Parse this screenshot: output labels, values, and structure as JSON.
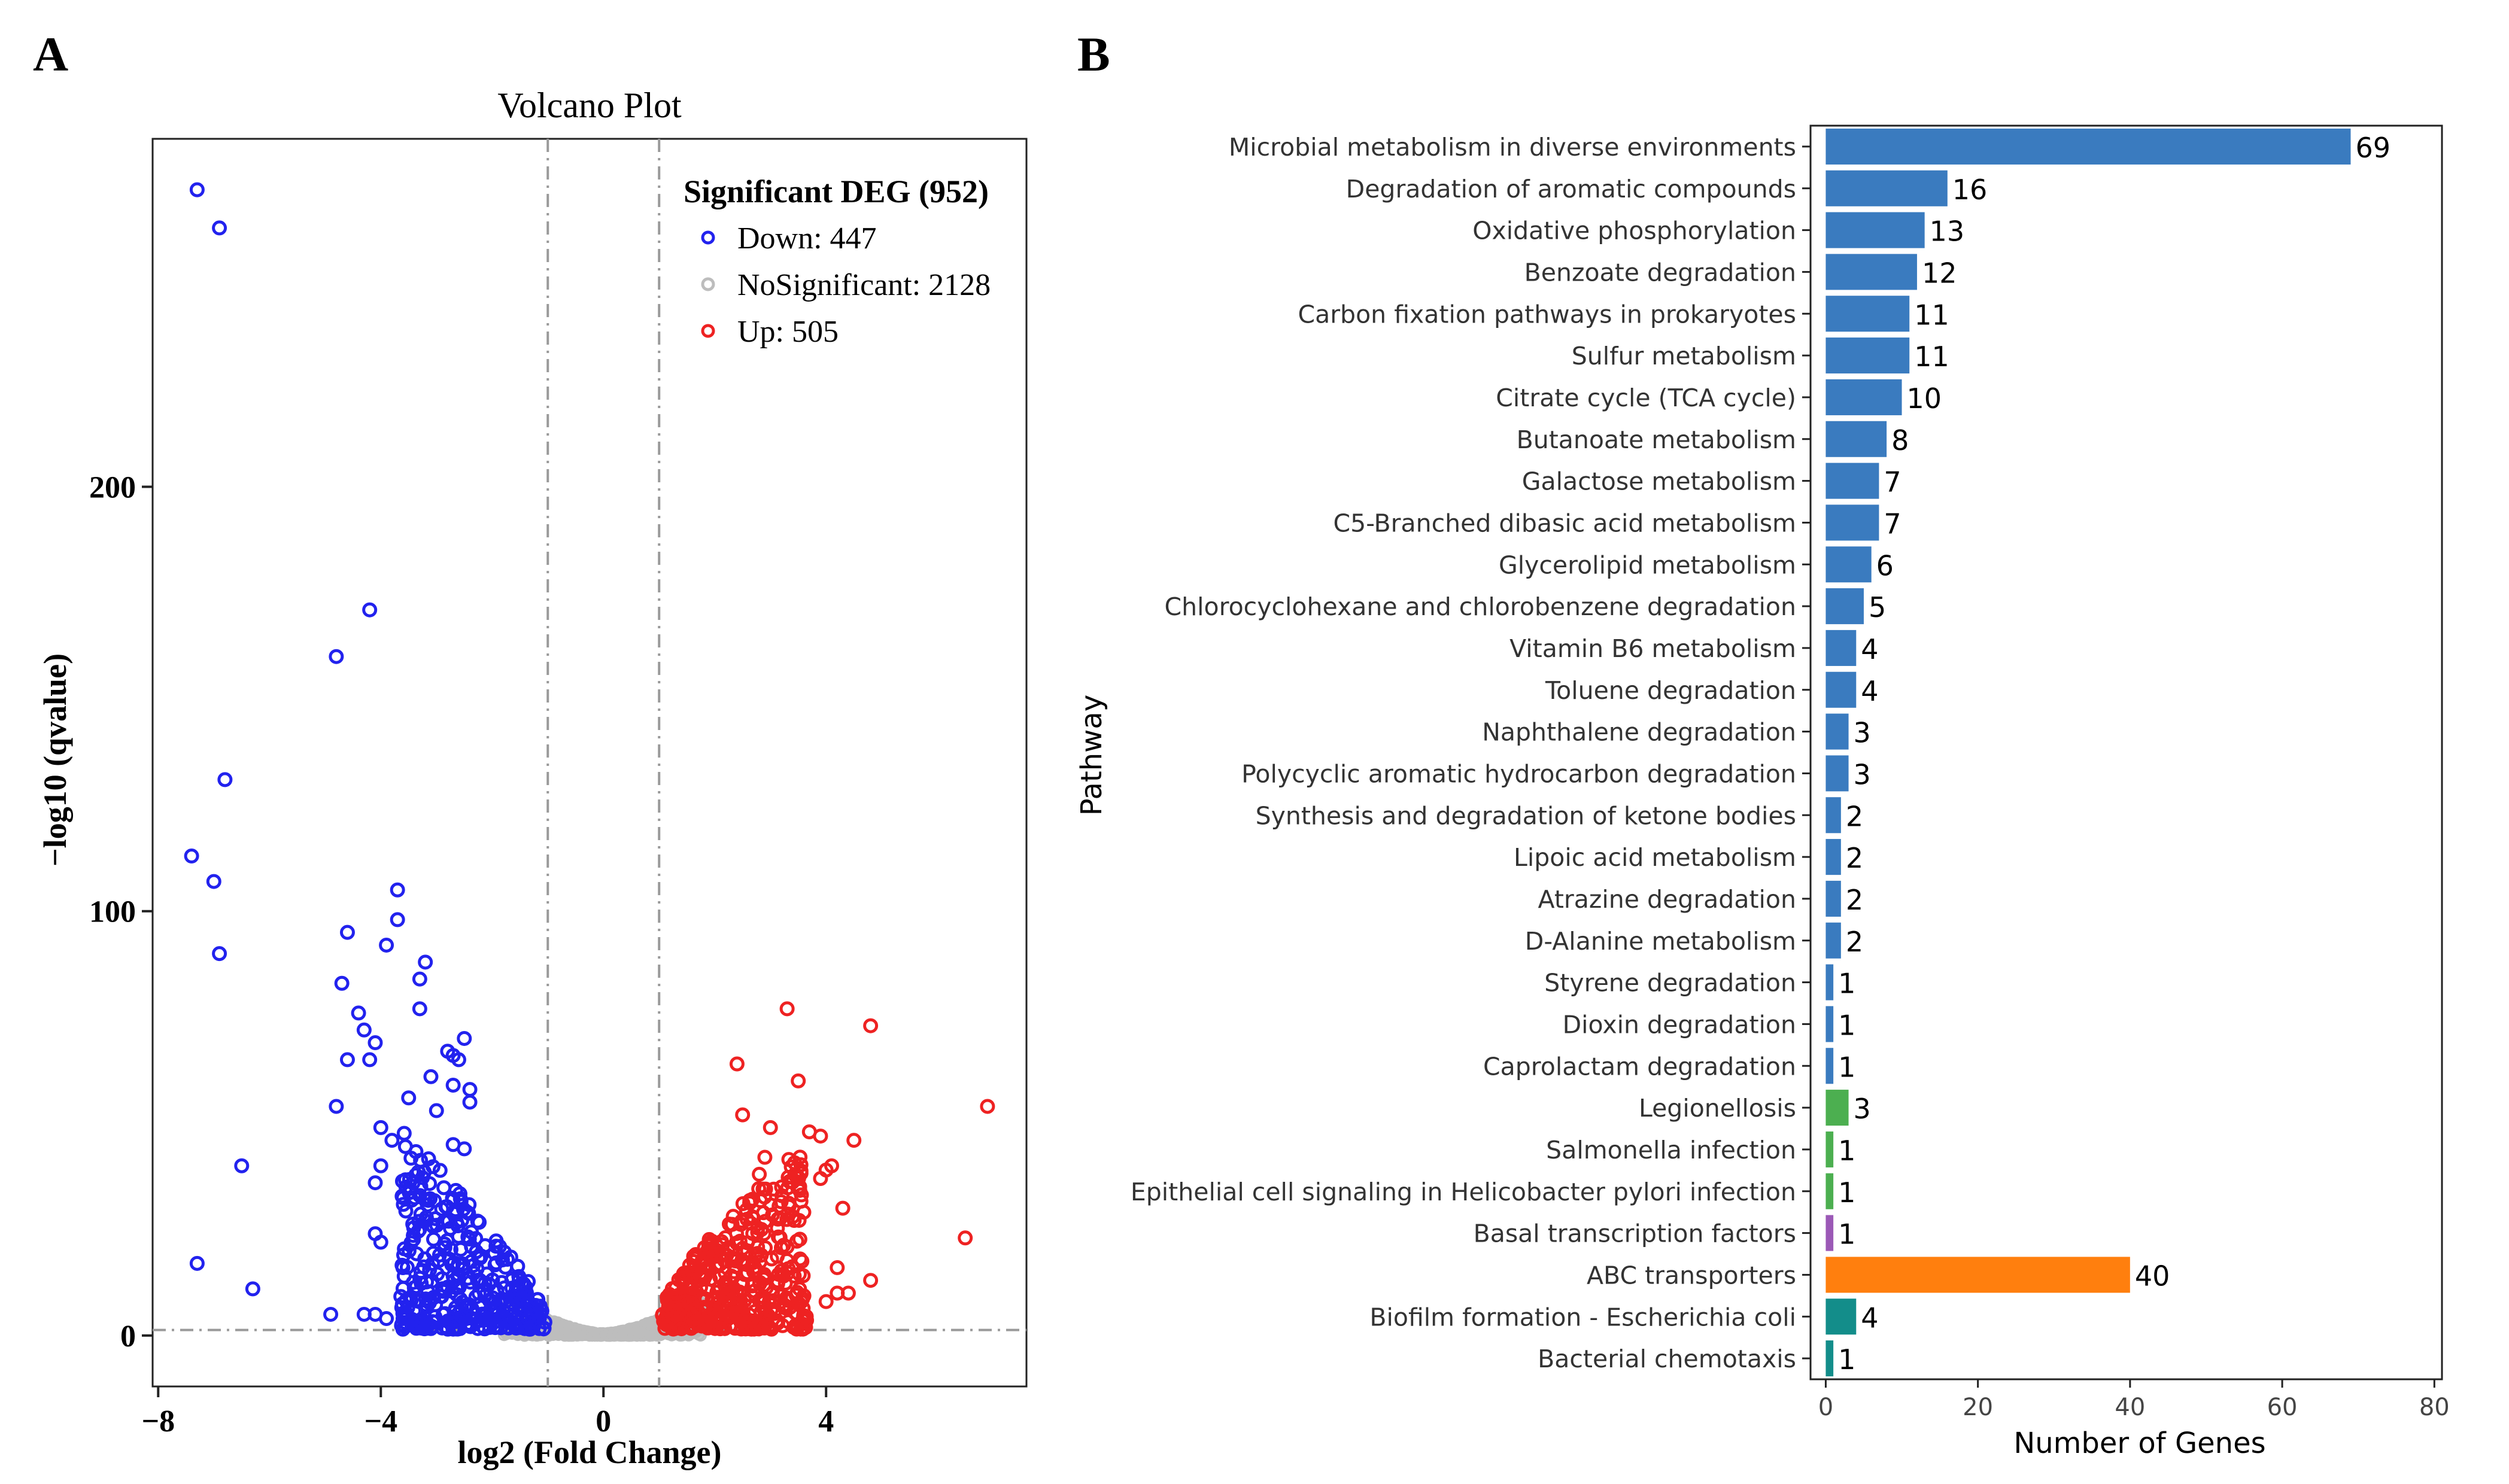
{
  "panels": {
    "a_label": "A",
    "b_label": "B"
  },
  "colors": {
    "down": "#2222ee",
    "nosig": "#bdbdbd",
    "up": "#ee2222",
    "bar_blue": "#3a7bbf",
    "bar_green": "#4caf50",
    "bar_purple": "#9b59b6",
    "bar_orange": "#ff7f0e",
    "bar_teal": "#138d8a"
  },
  "chart_data": [
    {
      "type": "scatter",
      "title": "Volcano Plot",
      "xlabel": "log2 (Fold Change)",
      "ylabel": "−log10 (qvalue)",
      "xlim": [
        -8.1,
        7.6
      ],
      "ylim": [
        -12,
        282
      ],
      "x_ticks": [
        -8,
        -4,
        0,
        4
      ],
      "x_tick_labels": [
        "−8",
        "−4",
        "0",
        "4"
      ],
      "y_ticks": [
        0,
        100,
        200
      ],
      "y_tick_labels": [
        "0",
        "100",
        "200"
      ],
      "thresholds": {
        "x": [
          -1,
          1
        ],
        "y": 1.3
      },
      "legend": {
        "title": "Significant DEG (952)",
        "position": "top-right",
        "entries": [
          {
            "label": "Down: 447",
            "color": "#2222ee"
          },
          {
            "label": "NoSignificant: 2128",
            "color": "#bdbdbd"
          },
          {
            "label": "Up: 505",
            "color": "#ee2222"
          }
        ]
      },
      "series": [
        {
          "name": "Down",
          "color": "#2222ee",
          "points": [
            [
              -7.3,
              270
            ],
            [
              -6.9,
              261
            ],
            [
              -6.8,
              131
            ],
            [
              -7.4,
              113
            ],
            [
              -7.0,
              107
            ],
            [
              -6.9,
              90
            ],
            [
              -6.5,
              40
            ],
            [
              -7.3,
              17
            ],
            [
              -6.3,
              11
            ],
            [
              -4.2,
              171
            ],
            [
              -4.8,
              160
            ],
            [
              -3.7,
              105
            ],
            [
              -3.7,
              98
            ],
            [
              -4.6,
              95
            ],
            [
              -3.9,
              92
            ],
            [
              -3.2,
              88
            ],
            [
              -3.3,
              84
            ],
            [
              -4.7,
              83
            ],
            [
              -4.4,
              76
            ],
            [
              -3.3,
              77
            ],
            [
              -4.3,
              72
            ],
            [
              -4.1,
              69
            ],
            [
              -4.2,
              65
            ],
            [
              -4.6,
              65
            ],
            [
              -2.5,
              70
            ],
            [
              -2.8,
              67
            ],
            [
              -2.7,
              66
            ],
            [
              -2.6,
              65
            ],
            [
              -4.8,
              54
            ],
            [
              -3.1,
              61
            ],
            [
              -2.7,
              59
            ],
            [
              -2.4,
              58
            ],
            [
              -3.5,
              56
            ],
            [
              -3.0,
              53
            ],
            [
              -2.4,
              55
            ],
            [
              -4.0,
              49
            ],
            [
              -3.8,
              46
            ],
            [
              -2.7,
              45
            ],
            [
              -2.5,
              44
            ],
            [
              -4.0,
              40
            ],
            [
              -4.1,
              36
            ],
            [
              -3.3,
              33
            ],
            [
              -4.1,
              24
            ],
            [
              -4.0,
              22
            ],
            [
              -4.3,
              5
            ],
            [
              -4.1,
              5
            ],
            [
              -4.9,
              5
            ],
            [
              -3.9,
              4
            ],
            [
              -3.6,
              4
            ]
          ],
          "cluster": {
            "x_range": [
              -3.6,
              -1.0
            ],
            "y_max": 48,
            "count": 398
          }
        },
        {
          "name": "NoSignificant",
          "color": "#bdbdbd",
          "cluster": {
            "x_range": [
              -1.8,
              1.8
            ],
            "y_max": 12,
            "count": 2128
          }
        },
        {
          "name": "Up",
          "color": "#ee2222",
          "points": [
            [
              3.3,
              77
            ],
            [
              4.8,
              73
            ],
            [
              6.9,
              54
            ],
            [
              3.5,
              60
            ],
            [
              2.4,
              64
            ],
            [
              2.5,
              52
            ],
            [
              3.0,
              49
            ],
            [
              3.7,
              48
            ],
            [
              3.9,
              47
            ],
            [
              4.5,
              46
            ],
            [
              6.5,
              23
            ],
            [
              4.0,
              39
            ],
            [
              4.1,
              40
            ],
            [
              3.9,
              37
            ],
            [
              4.3,
              30
            ],
            [
              4.2,
              16
            ],
            [
              4.8,
              13
            ],
            [
              4.4,
              10
            ],
            [
              4.2,
              10
            ],
            [
              4.0,
              8
            ],
            [
              2.9,
              42
            ],
            [
              2.8,
              38
            ],
            [
              3.2,
              35
            ],
            [
              3.4,
              28
            ]
          ],
          "cluster": {
            "x_range": [
              1.0,
              3.6
            ],
            "y_max": 45,
            "count": 481
          }
        }
      ]
    },
    {
      "type": "bar",
      "orientation": "horizontal",
      "xlabel": "Number of Genes",
      "ylabel": "Pathway",
      "xlim": [
        -2,
        81
      ],
      "x_ticks": [
        0,
        20,
        40,
        60,
        80
      ],
      "x_tick_labels": [
        "0",
        "20",
        "40",
        "60",
        "80"
      ],
      "categories": [
        "Microbial metabolism in diverse environments",
        "Degradation of aromatic compounds",
        "Oxidative phosphorylation",
        "Benzoate degradation",
        "Carbon fixation pathways in prokaryotes",
        "Sulfur metabolism",
        "Citrate cycle (TCA cycle)",
        "Butanoate metabolism",
        "Galactose metabolism",
        "C5-Branched dibasic acid metabolism",
        "Glycerolipid metabolism",
        "Chlorocyclohexane and chlorobenzene degradation",
        "Vitamin B6 metabolism",
        "Toluene degradation",
        "Naphthalene degradation",
        "Polycyclic aromatic hydrocarbon degradation",
        "Synthesis and degradation of ketone bodies",
        "Lipoic acid metabolism",
        "Atrazine degradation",
        "D-Alanine metabolism",
        "Styrene degradation",
        "Dioxin degradation",
        "Caprolactam degradation",
        "Legionellosis",
        "Salmonella infection",
        "Epithelial cell signaling in Helicobacter pylori infection",
        "Basal transcription factors",
        "ABC transporters",
        "Biofilm formation - Escherichia coli",
        "Bacterial chemotaxis"
      ],
      "values": [
        69,
        16,
        13,
        12,
        11,
        11,
        10,
        8,
        7,
        7,
        6,
        5,
        4,
        4,
        3,
        3,
        2,
        2,
        2,
        2,
        1,
        1,
        1,
        3,
        1,
        1,
        1,
        40,
        4,
        1
      ],
      "value_labels": [
        "69",
        "16",
        "13",
        "12",
        "11",
        "11",
        "10",
        "8",
        "7",
        "7",
        "6",
        "5",
        "4",
        "4",
        "3",
        "3",
        "2",
        "2",
        "2",
        "2",
        "1",
        "1",
        "1",
        "3",
        "1",
        "1",
        "1",
        "40",
        "4",
        "1"
      ],
      "bar_colors": [
        "#3a7bbf",
        "#3a7bbf",
        "#3a7bbf",
        "#3a7bbf",
        "#3a7bbf",
        "#3a7bbf",
        "#3a7bbf",
        "#3a7bbf",
        "#3a7bbf",
        "#3a7bbf",
        "#3a7bbf",
        "#3a7bbf",
        "#3a7bbf",
        "#3a7bbf",
        "#3a7bbf",
        "#3a7bbf",
        "#3a7bbf",
        "#3a7bbf",
        "#3a7bbf",
        "#3a7bbf",
        "#3a7bbf",
        "#3a7bbf",
        "#3a7bbf",
        "#4caf50",
        "#4caf50",
        "#4caf50",
        "#9b59b6",
        "#ff7f0e",
        "#138d8a",
        "#138d8a"
      ]
    }
  ]
}
